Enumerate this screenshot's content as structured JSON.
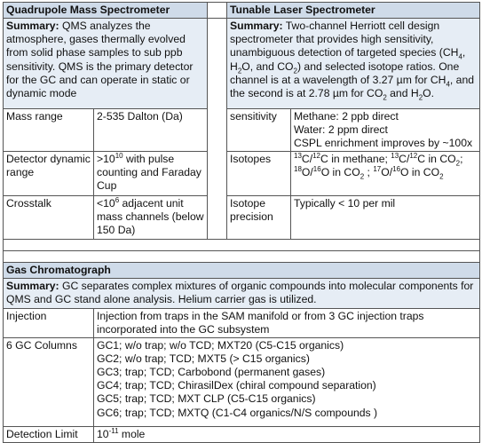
{
  "qms": {
    "title": "Quadrupole Mass Spectrometer",
    "summary_label": "Summary:",
    "summary_text": "QMS analyzes the atmosphere, gases thermally evolved from solid phase samples to sub ppb sensitivity.  QMS is the primary detector for the GC and can operate in static or dynamic mode",
    "rows": [
      {
        "label": "Mass range",
        "value": "2-535 Dalton (Da)"
      },
      {
        "label": "Detector dynamic range",
        "value_pre": ">10",
        "value_sup": "10",
        "value_post": " with pulse counting and Faraday Cup"
      },
      {
        "label": "Crosstalk",
        "value_pre": "<10",
        "value_sup": "6",
        "value_post": " adjacent unit mass channels (below 150 Da)"
      }
    ]
  },
  "tls": {
    "title": "Tunable Laser Spectrometer",
    "summary_label": "Summary:",
    "summary_parts": [
      "Two-channel Herriott cell design spectrometer that provides high sensitivity, unambiguous detection of targeted species (CH",
      "4",
      ", H",
      "2",
      "O, and CO",
      "2",
      ") and selected isotope ratios.  One channel is at a wavelength of 3.27 µm for CH",
      "4",
      ", and the second is at 2.78 µm for CO",
      "2",
      " and H",
      "2",
      "O."
    ],
    "sensitivity_label": "sensitivity",
    "sensitivity_lines": [
      "Methane: 2 ppb direct",
      "Water: 2 ppm direct",
      "CSPL enrichment improves by ~100x"
    ],
    "isotopes_label": "Isotopes",
    "isotopes_line1": [
      "13",
      "C/",
      "12",
      "C in methane; ",
      "13",
      "C/",
      "12",
      "C in CO",
      "2",
      ";"
    ],
    "isotopes_line2": [
      "18",
      "O/",
      "16",
      "O in CO",
      "2",
      " ; ",
      "17",
      "O/",
      "16",
      "O in CO",
      "2"
    ],
    "precision_label": "Isotope precision",
    "precision_value": "Typically < 10 per mil"
  },
  "gc": {
    "title": "Gas Chromatograph",
    "summary_label": "Summary:",
    "summary_text": "GC separates complex mixtures of organic compounds into molecular components for QMS and GC stand alone analysis.  Helium carrier gas is utilized.",
    "injection_label": "Injection",
    "injection_value": "Injection from traps in the SAM manifold or from 3 GC injection traps incorporated into the GC subsystem",
    "columns_label": "6 GC Columns",
    "columns": [
      "GC1; w/o trap; w/o TCD; MXT20  (C5-C15 organics)",
      "GC2; w/o trap; TCD; MXT5  (> C15 organics)",
      "GC3; trap; TCD; Carbobond (permanent gases)",
      "GC4; trap; TCD; ChirasilDex (chiral compound separation)",
      "GC5; trap; TCD; MXT CLP (C5-C15 organics)",
      "GC6; trap; TCD; MXTQ (C1-C4 organics/N/S compounds )"
    ],
    "detection_label": "Detection Limit",
    "detection_base": "10",
    "detection_sup": "-11",
    "detection_unit": " mole"
  }
}
